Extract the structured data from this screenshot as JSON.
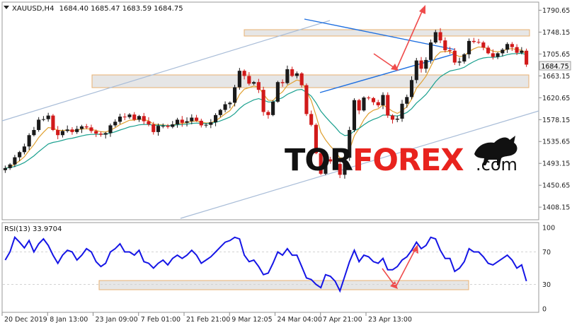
{
  "colors": {
    "up": "#1a1a1a",
    "down": "#d11a1a",
    "ma_fast": "#e0a030",
    "ma_slow": "#1aa08f",
    "channel": "#a9bdd8",
    "trend": "#1e6fe0",
    "zone_fill": "#e2e2e2",
    "zone_border": "#e8b070",
    "arrow": "#ef4c4c",
    "rsi": "#1515e6",
    "grid": "#d3d3d3",
    "axis_text": "#222222",
    "logo_dark": "#111111",
    "logo_red": "#e8231e"
  },
  "header": {
    "symbol": "XAUUSD,H4",
    "ohlc": "1684.40 1685.47 1683.59 1684.75"
  },
  "price_badge": "1684.75",
  "logo": {
    "part1": "TOR",
    "part2": "FOREX",
    "suffix": ".com",
    "icon": "bull-icon"
  },
  "rsi_header": "RSI(13) 33.9704",
  "chart_data": [
    {
      "type": "candlestick",
      "series": [
        {
          "name": "XAUUSD,H4",
          "close": [
            1484,
            1491,
            1505,
            1515,
            1526,
            1548,
            1558,
            1578,
            1579,
            1586,
            1558,
            1548,
            1556,
            1559,
            1554,
            1560,
            1565,
            1563,
            1556,
            1551,
            1549,
            1552,
            1567,
            1574,
            1584,
            1583,
            1588,
            1578,
            1585,
            1575,
            1569,
            1554,
            1566,
            1566,
            1564,
            1569,
            1578,
            1572,
            1575,
            1582,
            1576,
            1567,
            1568,
            1573,
            1587,
            1597,
            1608,
            1611,
            1641,
            1673,
            1663,
            1648,
            1651,
            1636,
            1593,
            1587,
            1613,
            1651,
            1649,
            1676,
            1663,
            1668,
            1645,
            1589,
            1568,
            1513,
            1473,
            1501,
            1497,
            1492,
            1471,
            1504,
            1558,
            1616,
            1596,
            1621,
            1620,
            1612,
            1606,
            1626,
            1586,
            1578,
            1580,
            1609,
            1622,
            1655,
            1693,
            1677,
            1694,
            1728,
            1748,
            1732,
            1713,
            1712,
            1689,
            1691,
            1705,
            1731,
            1729,
            1728,
            1718,
            1707,
            1700,
            1707,
            1714,
            1725,
            1719,
            1708,
            1712,
            1685
          ]
        }
      ],
      "y_ticks": [
        "1790.65",
        "1748.15",
        "1705.65",
        "1663.15",
        "1620.65",
        "1578.15",
        "1535.65",
        "1493.15",
        "1450.65",
        "1408.15"
      ],
      "ylim": [
        1385,
        1805
      ],
      "x_ticks": [
        "20 Dec 2019",
        "8 Jan 13:00",
        "23 Jan 09:00",
        "7 Feb 01:00",
        "21 Feb 21:00",
        "9 Mar 12:05",
        "24 Mar 04:00",
        "7 Apr 21:00",
        "23 Apr 13:00"
      ],
      "overlays": [
        "moving-average-fast",
        "moving-average-slow",
        "ascending-channel",
        "converging-trendlines",
        "support-zone",
        "resistance-zone",
        "forecast-arrows"
      ],
      "grid": false
    },
    {
      "type": "line",
      "series": [
        {
          "name": "RSI(13)",
          "values": [
            60,
            70,
            88,
            82,
            75,
            84,
            70,
            80,
            86,
            78,
            66,
            56,
            66,
            72,
            70,
            60,
            66,
            74,
            70,
            58,
            52,
            56,
            70,
            74,
            80,
            70,
            70,
            66,
            72,
            58,
            56,
            50,
            56,
            60,
            54,
            62,
            66,
            62,
            66,
            72,
            66,
            56,
            60,
            64,
            70,
            76,
            82,
            84,
            88,
            86,
            66,
            58,
            60,
            52,
            42,
            44,
            56,
            70,
            66,
            74,
            66,
            66,
            52,
            38,
            36,
            30,
            26,
            42,
            40,
            34,
            22,
            40,
            58,
            72,
            58,
            66,
            64,
            58,
            56,
            62,
            48,
            48,
            52,
            60,
            64,
            72,
            82,
            74,
            78,
            88,
            86,
            72,
            62,
            62,
            46,
            50,
            58,
            74,
            70,
            70,
            64,
            56,
            54,
            58,
            62,
            66,
            60,
            50,
            54,
            34
          ]
        }
      ],
      "y_ticks": [
        "100",
        "70",
        "30",
        "0"
      ],
      "ylim": [
        0,
        100
      ],
      "levels": [
        30,
        70
      ],
      "overlays": [
        "oversold-zone",
        "forecast-arrow"
      ]
    }
  ]
}
